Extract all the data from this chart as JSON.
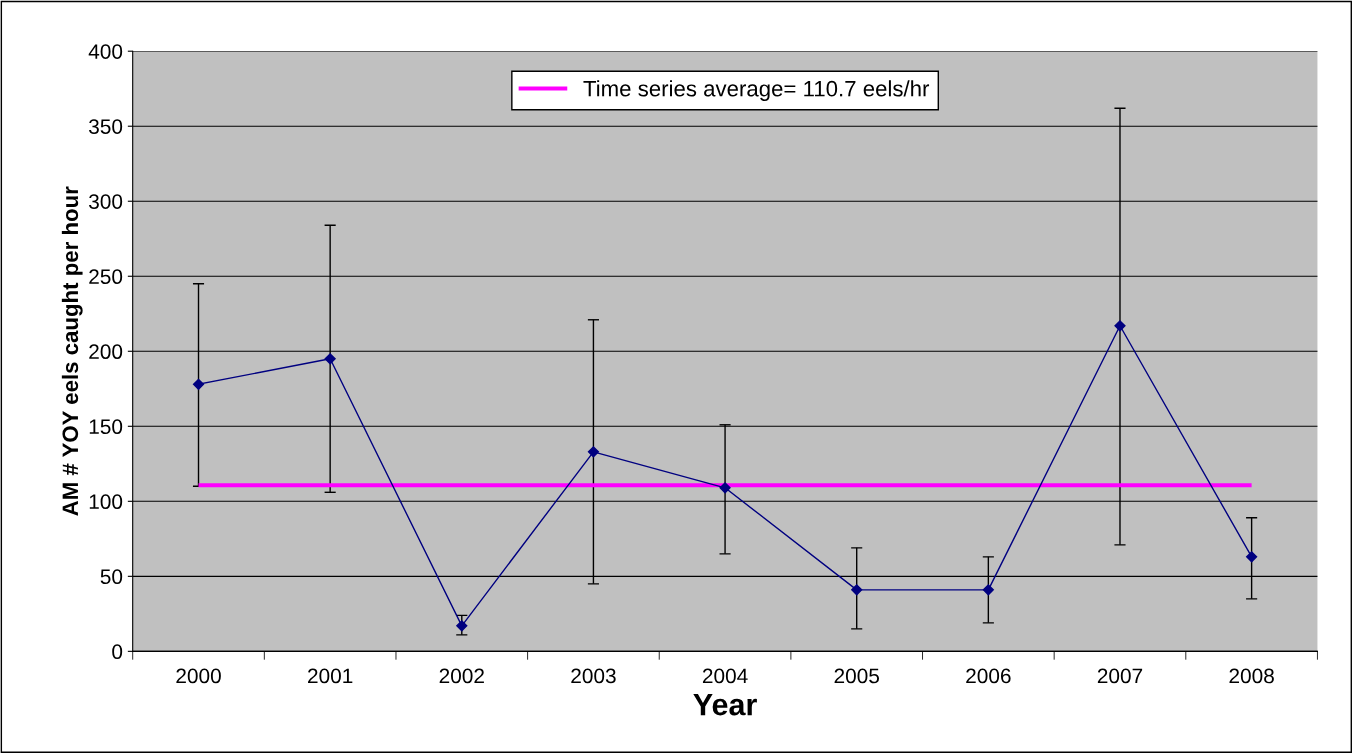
{
  "chart_data": {
    "type": "line",
    "xlabel": "Year",
    "ylabel": "AM # YOY eels caught per hour",
    "categories": [
      "2000",
      "2001",
      "2002",
      "2003",
      "2004",
      "2005",
      "2006",
      "2007",
      "2008"
    ],
    "series": [
      {
        "color": "#000080",
        "values": [
          178,
          195,
          17,
          133,
          109,
          41,
          41,
          217,
          63
        ],
        "errors": [
          [
            110,
            245
          ],
          [
            106,
            284
          ],
          [
            11,
            24
          ],
          [
            45,
            221
          ],
          [
            65,
            151
          ],
          [
            15,
            69
          ],
          [
            19,
            63
          ],
          [
            71,
            362
          ],
          [
            35,
            89
          ]
        ]
      }
    ],
    "ref_lines": [
      {
        "axis": "y",
        "value": 110.7,
        "label": "Time series average= 110.7 eels/hr",
        "color": "#ff00ff",
        "line_style": "solid"
      }
    ],
    "ylim": [
      0,
      400
    ],
    "yticks": [
      0,
      50,
      100,
      150,
      200,
      250,
      300,
      350,
      400
    ],
    "grid": "y",
    "legend": "top",
    "marker": "diamond",
    "line_style": "solid"
  }
}
